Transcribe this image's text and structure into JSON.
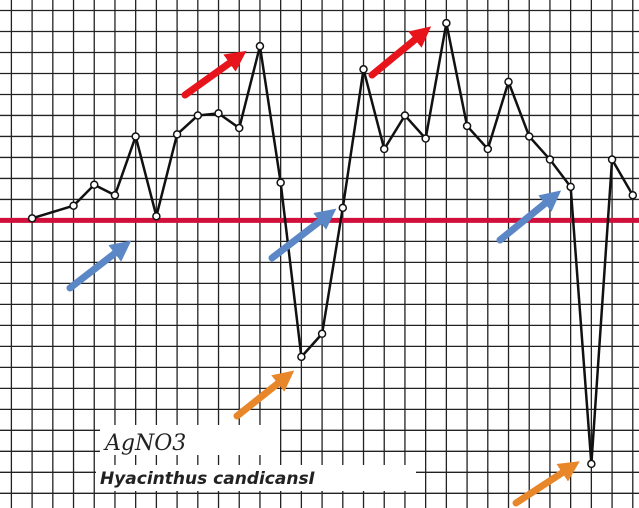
{
  "chart_data": {
    "type": "line",
    "annotations": [
      "AgNO3",
      "Hyacinthus candicansI"
    ],
    "x": [
      0,
      2,
      3,
      4,
      5,
      6,
      7,
      8,
      9,
      10,
      11,
      12,
      13,
      14,
      15,
      16,
      17,
      18,
      19,
      20,
      21,
      22,
      23,
      24,
      25,
      26,
      27,
      28,
      29
    ],
    "series": [
      {
        "color": "#111111",
        "values": [
          0.1,
          0.7,
          1.7,
          1.2,
          4.0,
          0.2,
          4.1,
          5.0,
          5.1,
          4.4,
          8.3,
          1.8,
          -6.5,
          -5.4,
          0.6,
          7.2,
          3.4,
          5.0,
          3.9,
          9.4,
          4.5,
          3.4,
          6.6,
          4.0,
          2.9,
          1.6,
          -11.6,
          2.9,
          1.2
        ]
      }
    ],
    "reference_line": {
      "value": 0,
      "color": "#d0103a"
    },
    "xlim": [
      -1.55,
      29.3
    ],
    "ylim": [
      -13.7,
      10.5
    ],
    "grid": true
  }
}
